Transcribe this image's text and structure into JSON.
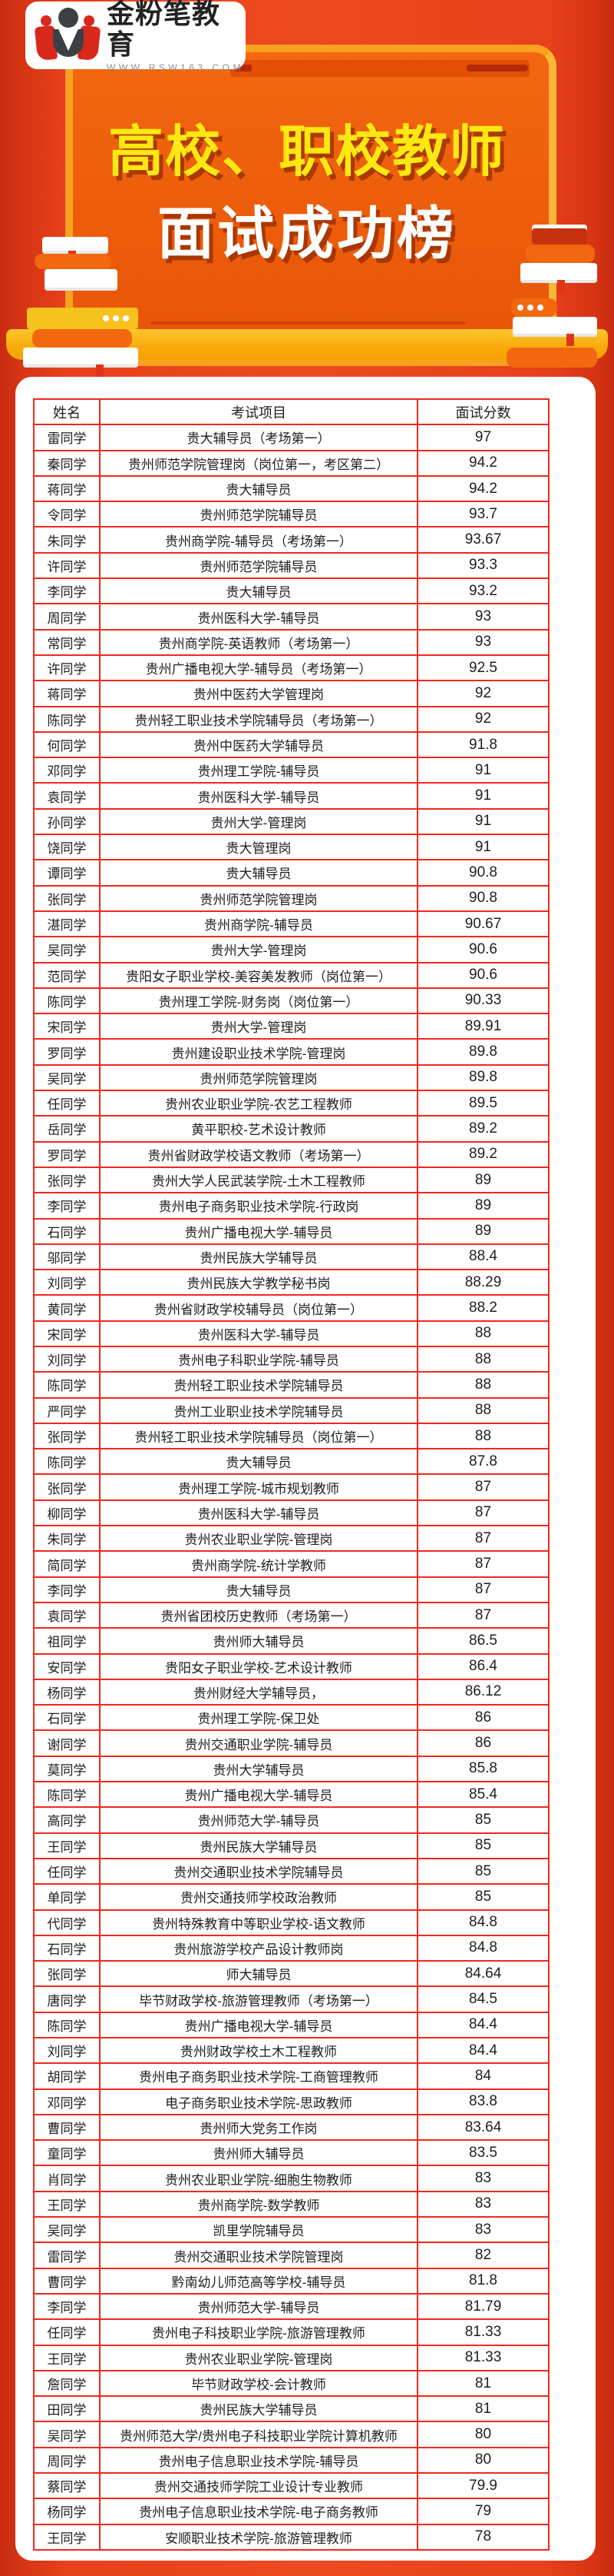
{
  "logo": {
    "brand": "金粉笔教育",
    "website": "WWW.RSW163.COM"
  },
  "banner": {
    "title_line1": "高校、职校教师",
    "title_line2": "面试成功榜",
    "title1_color": "#ffe812",
    "title2_color": "#ffffff",
    "panel_color": "#ec5c0b",
    "panel_border_color": "#f9a21f",
    "desk_color": "#f8ab0e",
    "background_color": "#ee4a1f"
  },
  "table": {
    "border_color": "#f2281c",
    "headers": [
      "姓名",
      "考试项目",
      "面试分数"
    ],
    "rows": [
      [
        "雷同学",
        "贵大辅导员（考场第一）",
        "97"
      ],
      [
        "秦同学",
        "贵州师范学院管理岗（岗位第一，考区第二）",
        "94.2"
      ],
      [
        "蒋同学",
        "贵大辅导员",
        "94.2"
      ],
      [
        "令同学",
        "贵州师范学院辅导员",
        "93.7"
      ],
      [
        "朱同学",
        "贵州商学院-辅导员（考场第一）",
        "93.67"
      ],
      [
        "许同学",
        "贵州师范学院辅导员",
        "93.3"
      ],
      [
        "李同学",
        "贵大辅导员",
        "93.2"
      ],
      [
        "周同学",
        "贵州医科大学-辅导员",
        "93"
      ],
      [
        "常同学",
        "贵州商学院-英语教师（考场第一）",
        "93"
      ],
      [
        "许同学",
        "贵州广播电视大学-辅导员（考场第一）",
        "92.5"
      ],
      [
        "蒋同学",
        "贵州中医药大学管理岗",
        "92"
      ],
      [
        "陈同学",
        "贵州轻工职业技术学院辅导员（考场第一）",
        "92"
      ],
      [
        "何同学",
        "贵州中医药大学辅导员",
        "91.8"
      ],
      [
        "邓同学",
        "贵州理工学院-辅导员",
        "91"
      ],
      [
        "袁同学",
        "贵州医科大学-辅导员",
        "91"
      ],
      [
        "孙同学",
        "贵州大学-管理岗",
        "91"
      ],
      [
        "饶同学",
        "贵大管理岗",
        "91"
      ],
      [
        "谭同学",
        "贵大辅导员",
        "90.8"
      ],
      [
        "张同学",
        "贵州师范学院管理岗",
        "90.8"
      ],
      [
        "湛同学",
        "贵州商学院-辅导员",
        "90.67"
      ],
      [
        "吴同学",
        "贵州大学-管理岗",
        "90.6"
      ],
      [
        "范同学",
        "贵阳女子职业学校-美容美发教师（岗位第一）",
        "90.6"
      ],
      [
        "陈同学",
        "贵州理工学院-财务岗（岗位第一）",
        "90.33"
      ],
      [
        "宋同学",
        "贵州大学-管理岗",
        "89.91"
      ],
      [
        "罗同学",
        "贵州建设职业技术学院-管理岗",
        "89.8"
      ],
      [
        "吴同学",
        "贵州师范学院管理岗",
        "89.8"
      ],
      [
        "任同学",
        "贵州农业职业学院-农艺工程教师",
        "89.5"
      ],
      [
        "岳同学",
        "黄平职校-艺术设计教师",
        "89.2"
      ],
      [
        "罗同学",
        "贵州省财政学校语文教师（考场第一）",
        "89.2"
      ],
      [
        "张同学",
        "贵州大学人民武装学院-土木工程教师",
        "89"
      ],
      [
        "李同学",
        "贵州电子商务职业技术学院-行政岗",
        "89"
      ],
      [
        "石同学",
        "贵州广播电视大学-辅导员",
        "89"
      ],
      [
        "邬同学",
        "贵州民族大学辅导员",
        "88.4"
      ],
      [
        "刘同学",
        "贵州民族大学教学秘书岗",
        "88.29"
      ],
      [
        "黄同学",
        "贵州省财政学校辅导员（岗位第一）",
        "88.2"
      ],
      [
        "宋同学",
        "贵州医科大学-辅导员",
        "88"
      ],
      [
        "刘同学",
        "贵州电子科职业学院-辅导员",
        "88"
      ],
      [
        "陈同学",
        "贵州轻工职业技术学院辅导员",
        "88"
      ],
      [
        "严同学",
        "贵州工业职业技术学院辅导员",
        "88"
      ],
      [
        "张同学",
        "贵州轻工职业技术学院辅导员（岗位第一）",
        "88"
      ],
      [
        "陈同学",
        "贵大辅导员",
        "87.8"
      ],
      [
        "张同学",
        "贵州理工学院-城市规划教师",
        "87"
      ],
      [
        "柳同学",
        "贵州医科大学-辅导员",
        "87"
      ],
      [
        "朱同学",
        "贵州农业职业学院-管理岗",
        "87"
      ],
      [
        "简同学",
        "贵州商学院-统计学教师",
        "87"
      ],
      [
        "李同学",
        "贵大辅导员",
        "87"
      ],
      [
        "袁同学",
        "贵州省团校历史教师（考场第一）",
        "87"
      ],
      [
        "祖同学",
        "贵州师大辅导员",
        "86.5"
      ],
      [
        "安同学",
        "贵阳女子职业学校-艺术设计教师",
        "86.4"
      ],
      [
        "杨同学",
        "贵州财经大学辅导员，",
        "86.12"
      ],
      [
        "石同学",
        "贵州理工学院-保卫处",
        "86"
      ],
      [
        "谢同学",
        "贵州交通职业学院-辅导员",
        "86"
      ],
      [
        "莫同学",
        "贵州大学辅导员",
        "85.8"
      ],
      [
        "陈同学",
        "贵州广播电视大学-辅导员",
        "85.4"
      ],
      [
        "高同学",
        "贵州师范大学-辅导员",
        "85"
      ],
      [
        "王同学",
        "贵州民族大学辅导员",
        "85"
      ],
      [
        "任同学",
        "贵州交通职业技术学院辅导员",
        "85"
      ],
      [
        "单同学",
        "贵州交通技师学校政治教师",
        "85"
      ],
      [
        "代同学",
        "贵州特殊教育中等职业学校-语文教师",
        "84.8"
      ],
      [
        "石同学",
        "贵州旅游学校产品设计教师岗",
        "84.8"
      ],
      [
        "张同学",
        "师大辅导员",
        "84.64"
      ],
      [
        "唐同学",
        "毕节财政学校-旅游管理教师（考场第一）",
        "84.5"
      ],
      [
        "陈同学",
        "贵州广播电视大学-辅导员",
        "84.4"
      ],
      [
        "刘同学",
        "贵州财政学校土木工程教师",
        "84.4"
      ],
      [
        "胡同学",
        "贵州电子商务职业技术学院-工商管理教师",
        "84"
      ],
      [
        "邓同学",
        "电子商务职业技术学院-思政教师",
        "83.8"
      ],
      [
        "曹同学",
        "贵州师大党务工作岗",
        "83.64"
      ],
      [
        "童同学",
        "贵州师大辅导员",
        "83.5"
      ],
      [
        "肖同学",
        "贵州农业职业学院-细胞生物教师",
        "83"
      ],
      [
        "王同学",
        "贵州商学院-数学教师",
        "83"
      ],
      [
        "吴同学",
        "凯里学院辅导员",
        "83"
      ],
      [
        "雷同学",
        "贵州交通职业技术学院管理岗",
        "82"
      ],
      [
        "曹同学",
        "黔南幼儿师范高等学校-辅导员",
        "81.8"
      ],
      [
        "李同学",
        "贵州师范大学-辅导员",
        "81.79"
      ],
      [
        "任同学",
        "贵州电子科技职业学院-旅游管理教师",
        "81.33"
      ],
      [
        "王同学",
        "贵州农业职业学院-管理岗",
        "81.33"
      ],
      [
        "詹同学",
        "毕节财政学校-会计教师",
        "81"
      ],
      [
        "田同学",
        "贵州民族大学辅导员",
        "81"
      ],
      [
        "吴同学",
        "贵州师范大学/贵州电子科技职业学院计算机教师",
        "80"
      ],
      [
        "周同学",
        "贵州电子信息职业技术学院-辅导员",
        "80"
      ],
      [
        "蔡同学",
        "贵州交通技师学院工业设计专业教师",
        "79.9"
      ],
      [
        "杨同学",
        "贵州电子信息职业技术学院-电子商务教师",
        "79"
      ],
      [
        "王同学",
        "安顺职业技术学院-旅游管理教师",
        "78"
      ]
    ]
  }
}
